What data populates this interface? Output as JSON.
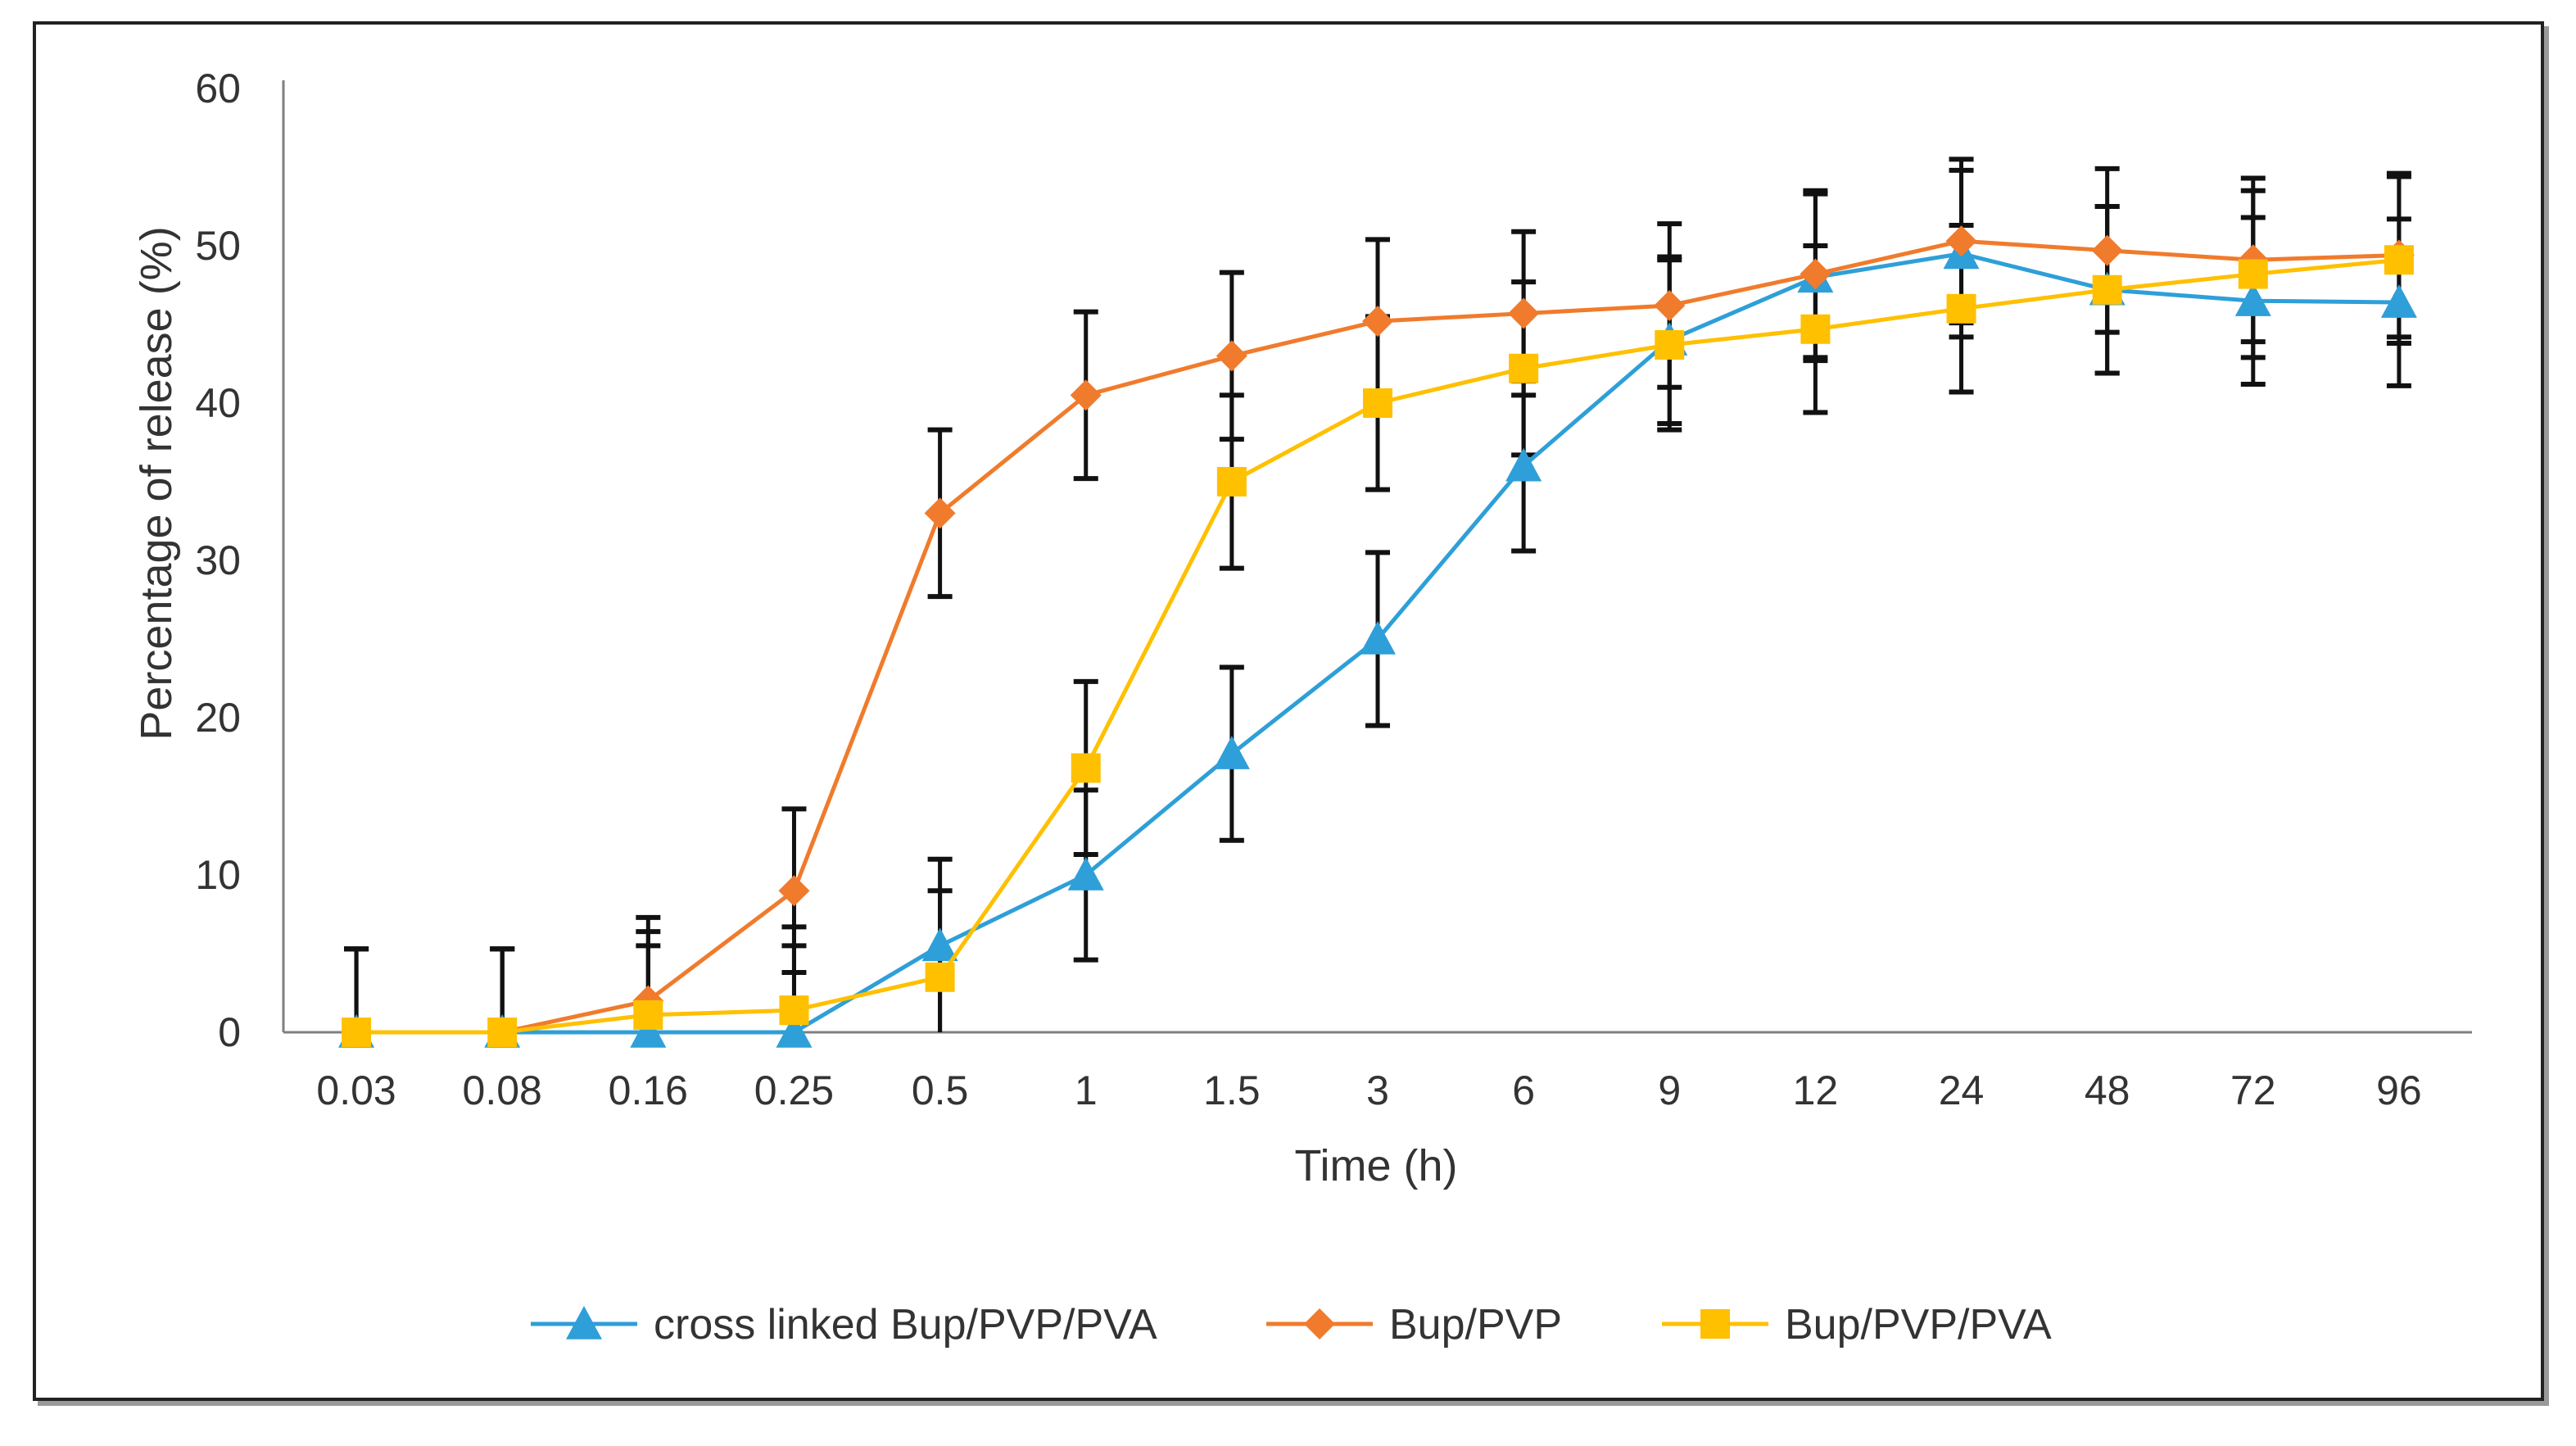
{
  "chart_data": {
    "type": "line",
    "title": "",
    "xlabel": "Time (h)",
    "ylabel": "Percentage of release (%)",
    "categories": [
      "0.03",
      "0.08",
      "0.16",
      "0.25",
      "0.5",
      "1",
      "1.5",
      "3",
      "6",
      "9",
      "12",
      "24",
      "48",
      "72",
      "96"
    ],
    "ylim": [
      0,
      60
    ],
    "yticks": [
      0,
      10,
      20,
      30,
      40,
      50,
      60
    ],
    "grid": false,
    "legend_position": "bottom",
    "series": [
      {
        "name": "cross linked Bup/PVP/PVA",
        "color": "#2E9FD8",
        "marker": "triangle",
        "values": [
          0,
          0,
          0,
          0,
          5.5,
          10,
          17.7,
          25,
          36,
          44,
          48,
          49.5,
          47.2,
          46.5,
          46.4
        ],
        "errors": [
          5.3,
          5.3,
          5.5,
          5.5,
          5.5,
          5.4,
          5.5,
          5.5,
          5.4,
          5.3,
          5.3,
          5.3,
          5.3,
          5.3,
          5.3
        ]
      },
      {
        "name": "Bup/PVP",
        "color": "#F07B2C",
        "marker": "diamond",
        "values": [
          0,
          0,
          2,
          9,
          33,
          40.5,
          43,
          45.2,
          45.7,
          46.2,
          48.2,
          50.3,
          49.7,
          49.1,
          49.4
        ],
        "errors": [
          5.3,
          5.3,
          5.3,
          5.2,
          5.3,
          5.3,
          5.3,
          5.2,
          5.2,
          5.2,
          5.3,
          5.2,
          5.2,
          5.2,
          5.2
        ]
      },
      {
        "name": "Bup/PVP/PVA",
        "color": "#FFC000",
        "marker": "square",
        "values": [
          0,
          0,
          1.1,
          1.4,
          3.5,
          16.8,
          35,
          40,
          42.2,
          43.7,
          44.7,
          46,
          47.2,
          48.2,
          49.1
        ],
        "errors": [
          5.3,
          5.3,
          5.3,
          5.3,
          5.5,
          5.5,
          5.5,
          5.5,
          5.5,
          5.4,
          5.3,
          5.3,
          5.3,
          5.3,
          5.3
        ]
      }
    ]
  }
}
